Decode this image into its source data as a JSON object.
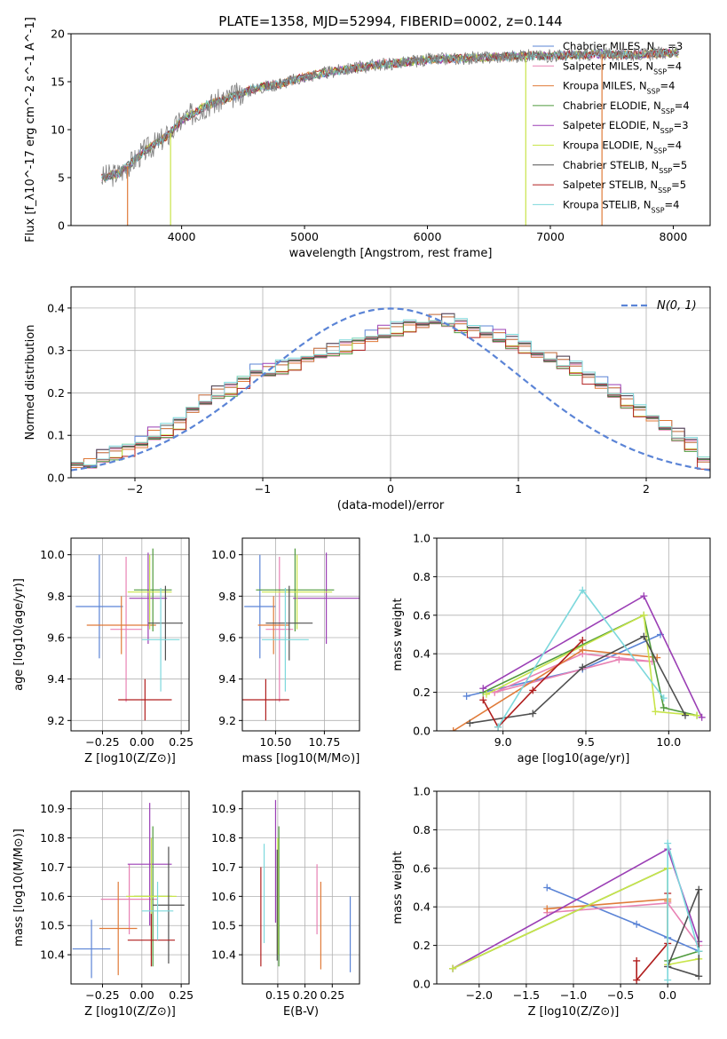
{
  "title": "PLATE=1358, MJD=52994, FIBERID=0002, z=0.144",
  "legend": [
    {
      "label": "Chabrier MILES, N_SSP=3",
      "main": "Chabrier MILES, N",
      "sub": "SSP",
      "tail": "=3",
      "color": "#5b84d6"
    },
    {
      "label": "Salpeter MILES, N_SSP=4",
      "main": "Salpeter MILES, N",
      "sub": "SSP",
      "tail": "=4",
      "color": "#e882b4"
    },
    {
      "label": "Kroupa MILES, N_SSP=4",
      "main": "Kroupa MILES, N",
      "sub": "SSP",
      "tail": "=4",
      "color": "#e07b39"
    },
    {
      "label": "Chabrier ELODIE, N_SSP=4",
      "main": "Chabrier ELODIE, N",
      "sub": "SSP",
      "tail": "=4",
      "color": "#4f9a3c"
    },
    {
      "label": "Salpeter ELODIE, N_SSP=3",
      "main": "Salpeter ELODIE, N",
      "sub": "SSP",
      "tail": "=3",
      "color": "#9b3fb5"
    },
    {
      "label": "Kroupa ELODIE, N_SSP=4",
      "main": "Kroupa ELODIE, N",
      "sub": "SSP",
      "tail": "=4",
      "color": "#c8e44a"
    },
    {
      "label": "Chabrier STELIB, N_SSP=5",
      "main": "Chabrier STELIB, N",
      "sub": "SSP",
      "tail": "=5",
      "color": "#505050"
    },
    {
      "label": "Salpeter STELIB, N_SSP=5",
      "main": "Salpeter STELIB, N",
      "sub": "SSP",
      "tail": "=5",
      "color": "#b01e1e"
    },
    {
      "label": "Kroupa STELIB, N_SSP=4",
      "main": "Kroupa STELIB, N",
      "sub": "SSP",
      "tail": "=4",
      "color": "#7dd8dc"
    }
  ],
  "chart_data": [
    {
      "id": "spectrum",
      "type": "line",
      "xlabel": "wavelength [Angstrom, rest frame]",
      "ylabel": "Flux [f_λ10^-17 erg cm^-2 s^-1 A^-1]",
      "xlim": [
        3100,
        8300
      ],
      "ylim": [
        0,
        20
      ],
      "xticks": [
        4000,
        5000,
        6000,
        7000,
        8000
      ],
      "yticks": [
        0,
        5,
        10,
        15,
        20
      ],
      "grid": false,
      "data_color": "#808080",
      "data_x": [
        3350,
        3500,
        3700,
        3900,
        4000,
        4200,
        4400,
        4600,
        4800,
        5000,
        5200,
        5400,
        5600,
        5800,
        6000,
        6200,
        6400,
        6600,
        6800,
        7000,
        7200,
        7400,
        7600,
        7800,
        8000
      ],
      "data_y": [
        5.0,
        5.5,
        7.8,
        9.5,
        11.0,
        12.5,
        13.4,
        14.3,
        14.8,
        15.5,
        16.0,
        16.4,
        16.8,
        17.0,
        17.3,
        17.4,
        17.5,
        17.6,
        17.7,
        17.7,
        17.8,
        17.9,
        17.8,
        17.9,
        18.0
      ],
      "model_spikes": [
        {
          "x": 3560,
          "color": "#e07b39"
        },
        {
          "x": 3910,
          "color": "#c8e44a"
        },
        {
          "x": 6800,
          "color": "#c8e44a"
        },
        {
          "x": 7420,
          "color": "#e07b39"
        }
      ]
    },
    {
      "id": "residuals",
      "type": "step",
      "xlabel": "(data-model)/error",
      "ylabel": "Normed distribution",
      "xlim": [
        -2.5,
        2.5
      ],
      "ylim": [
        0,
        0.45
      ],
      "xticks": [
        -2,
        -1,
        0,
        1,
        2
      ],
      "yticks": [
        0.0,
        0.1,
        0.2,
        0.3,
        0.4
      ],
      "grid": true,
      "gaussian_label": "N(0, 1)",
      "gaussian_color": "#5b84d6",
      "bin_width": 0.1,
      "x_start": -2.5,
      "y_values": [
        0.03,
        0.03,
        0.05,
        0.06,
        0.07,
        0.08,
        0.1,
        0.11,
        0.13,
        0.16,
        0.18,
        0.2,
        0.21,
        0.23,
        0.25,
        0.25,
        0.26,
        0.27,
        0.28,
        0.29,
        0.3,
        0.31,
        0.32,
        0.33,
        0.34,
        0.35,
        0.36,
        0.36,
        0.37,
        0.37,
        0.36,
        0.35,
        0.34,
        0.33,
        0.32,
        0.31,
        0.29,
        0.28,
        0.27,
        0.26,
        0.24,
        0.22,
        0.2,
        0.18,
        0.16,
        0.14,
        0.12,
        0.1,
        0.08,
        0.04
      ]
    },
    {
      "id": "age-vs-Z",
      "type": "errorbar",
      "xlabel": "Z [log10(Z/Z⊙)]",
      "ylabel": "age [log10(age/yr)]",
      "xlim": [
        -0.45,
        0.3
      ],
      "ylim": [
        9.15,
        10.08
      ],
      "xticks": [
        -0.25,
        0.0,
        0.25
      ],
      "ytick_values": [
        9.2,
        9.4,
        9.6,
        9.8,
        10.0
      ],
      "grid": true,
      "points": [
        {
          "x": -0.27,
          "xerr": 0.15,
          "y": 9.75,
          "yerr": 0.25,
          "color": "#5b84d6"
        },
        {
          "x": -0.1,
          "xerr": 0.1,
          "y": 9.64,
          "yerr": 0.35,
          "color": "#e882b4"
        },
        {
          "x": -0.13,
          "xerr": 0.22,
          "y": 9.66,
          "yerr": 0.14,
          "color": "#e07b39"
        },
        {
          "x": 0.07,
          "xerr": 0.12,
          "y": 9.83,
          "yerr": 0.2,
          "color": "#4f9a3c"
        },
        {
          "x": 0.04,
          "xerr": 0.12,
          "y": 9.79,
          "yerr": 0.22,
          "color": "#9b3fb5"
        },
        {
          "x": 0.05,
          "xerr": 0.14,
          "y": 9.82,
          "yerr": 0.18,
          "color": "#c8e44a"
        },
        {
          "x": 0.15,
          "xerr": 0.11,
          "y": 9.67,
          "yerr": 0.18,
          "color": "#505050"
        },
        {
          "x": 0.02,
          "xerr": 0.17,
          "y": 9.3,
          "yerr": 0.1,
          "color": "#b01e1e"
        },
        {
          "x": 0.12,
          "xerr": 0.12,
          "y": 9.59,
          "yerr": 0.25,
          "color": "#7dd8dc"
        }
      ]
    },
    {
      "id": "age-vs-mass",
      "type": "errorbar",
      "xlabel": "mass [log10(M/M⊙)]",
      "ylabel": "",
      "xlim": [
        10.33,
        10.93
      ],
      "ylim": [
        9.15,
        10.08
      ],
      "xticks": [
        10.5,
        10.75
      ],
      "ytick_values": [
        9.2,
        9.4,
        9.6,
        9.8,
        10.0
      ],
      "grid": true,
      "points": [
        {
          "x": 10.42,
          "xerr": 0.08,
          "y": 9.75,
          "yerr": 0.25,
          "color": "#5b84d6"
        },
        {
          "x": 10.52,
          "xerr": 0.07,
          "y": 9.64,
          "yerr": 0.35,
          "color": "#e882b4"
        },
        {
          "x": 10.49,
          "xerr": 0.08,
          "y": 9.66,
          "yerr": 0.14,
          "color": "#e07b39"
        },
        {
          "x": 10.6,
          "xerr": 0.2,
          "y": 9.83,
          "yerr": 0.2,
          "color": "#4f9a3c"
        },
        {
          "x": 10.76,
          "xerr": 0.17,
          "y": 9.79,
          "yerr": 0.22,
          "color": "#9b3fb5"
        },
        {
          "x": 10.61,
          "xerr": 0.18,
          "y": 9.82,
          "yerr": 0.18,
          "color": "#c8e44a"
        },
        {
          "x": 10.57,
          "xerr": 0.12,
          "y": 9.67,
          "yerr": 0.18,
          "color": "#505050"
        },
        {
          "x": 10.45,
          "xerr": 0.12,
          "y": 9.3,
          "yerr": 0.1,
          "color": "#b01e1e"
        },
        {
          "x": 10.55,
          "xerr": 0.12,
          "y": 9.59,
          "yerr": 0.25,
          "color": "#7dd8dc"
        }
      ]
    },
    {
      "id": "massweight-vs-age",
      "type": "line",
      "xlabel": "age [log10(age/yr)]",
      "ylabel": "mass weight",
      "xlim": [
        8.6,
        10.25
      ],
      "ylim": [
        0,
        1.0
      ],
      "xticks": [
        9.0,
        9.5,
        10.0
      ],
      "yticks": [
        0.0,
        0.2,
        0.4,
        0.6,
        0.8,
        1.0
      ],
      "grid": true,
      "series": [
        {
          "color": "#5b84d6",
          "x": [
            8.78,
            9.48,
            9.95
          ],
          "y": [
            0.18,
            0.32,
            0.5
          ]
        },
        {
          "color": "#e882b4",
          "x": [
            8.95,
            9.48,
            9.9,
            9.7,
            8.95
          ],
          "y": [
            0.2,
            0.4,
            0.36,
            0.37,
            0.2
          ]
        },
        {
          "color": "#e07b39",
          "x": [
            8.7,
            9.48,
            9.93
          ],
          "y": [
            0.0,
            0.42,
            0.38
          ]
        },
        {
          "color": "#4f9a3c",
          "x": [
            8.88,
            9.85,
            9.97,
            10.17
          ],
          "y": [
            0.2,
            0.6,
            0.12,
            0.08
          ]
        },
        {
          "color": "#9b3fb5",
          "x": [
            8.88,
            9.85,
            10.2
          ],
          "y": [
            0.22,
            0.7,
            0.07
          ]
        },
        {
          "color": "#c8e44a",
          "x": [
            8.9,
            9.85,
            9.92,
            10.17
          ],
          "y": [
            0.19,
            0.6,
            0.1,
            0.08
          ]
        },
        {
          "color": "#505050",
          "x": [
            8.8,
            9.18,
            9.48,
            9.85,
            10.1
          ],
          "y": [
            0.04,
            0.09,
            0.33,
            0.49,
            0.08
          ]
        },
        {
          "color": "#b01e1e",
          "x": [
            8.88,
            8.97,
            9.18,
            9.48
          ],
          "y": [
            0.16,
            0.02,
            0.21,
            0.47
          ]
        },
        {
          "color": "#7dd8dc",
          "x": [
            8.97,
            9.48,
            9.97
          ],
          "y": [
            0.02,
            0.73,
            0.17
          ]
        }
      ]
    },
    {
      "id": "mass-vs-Z",
      "type": "errorbar",
      "xlabel": "Z [log10(Z/Z⊙)]",
      "ylabel": "mass [log10(M/M⊙)]",
      "xlim": [
        -0.45,
        0.3
      ],
      "ylim": [
        10.3,
        10.96
      ],
      "xticks": [
        -0.25,
        0.0,
        0.25
      ],
      "ytick_values": [
        10.4,
        10.5,
        10.6,
        10.7,
        10.8,
        10.9
      ],
      "grid": true,
      "points": [
        {
          "x": -0.32,
          "xerr": 0.12,
          "y": 10.42,
          "yerr": 0.1,
          "color": "#5b84d6"
        },
        {
          "x": -0.08,
          "xerr": 0.18,
          "y": 10.59,
          "yerr": 0.12,
          "color": "#e882b4"
        },
        {
          "x": -0.15,
          "xerr": 0.12,
          "y": 10.49,
          "yerr": 0.16,
          "color": "#e07b39"
        },
        {
          "x": 0.07,
          "xerr": 0.12,
          "y": 10.6,
          "yerr": 0.24,
          "color": "#4f9a3c"
        },
        {
          "x": 0.05,
          "xerr": 0.14,
          "y": 10.71,
          "yerr": 0.21,
          "color": "#9b3fb5"
        },
        {
          "x": 0.06,
          "xerr": 0.16,
          "y": 10.6,
          "yerr": 0.2,
          "color": "#c8e44a"
        },
        {
          "x": 0.17,
          "xerr": 0.1,
          "y": 10.57,
          "yerr": 0.2,
          "color": "#505050"
        },
        {
          "x": 0.06,
          "xerr": 0.15,
          "y": 10.45,
          "yerr": 0.09,
          "color": "#b01e1e"
        },
        {
          "x": 0.1,
          "xerr": 0.1,
          "y": 10.55,
          "yerr": 0.1,
          "color": "#7dd8dc"
        }
      ]
    },
    {
      "id": "mass-vs-EBV",
      "type": "errorbar",
      "xlabel": "E(B-V)",
      "ylabel": "",
      "xlim": [
        0.085,
        0.3
      ],
      "ylim": [
        10.3,
        10.96
      ],
      "xticks": [
        0.15,
        0.2,
        0.25
      ],
      "ytick_values": [
        10.4,
        10.5,
        10.6,
        10.7,
        10.8,
        10.9
      ],
      "grid": true,
      "points": [
        {
          "x": 0.283,
          "xerr": 0,
          "y": 10.47,
          "yerr": 0.13,
          "color": "#5b84d6"
        },
        {
          "x": 0.222,
          "xerr": 0,
          "y": 10.59,
          "yerr": 0.12,
          "color": "#e882b4"
        },
        {
          "x": 0.229,
          "xerr": 0,
          "y": 10.5,
          "yerr": 0.15,
          "color": "#e07b39"
        },
        {
          "x": 0.152,
          "xerr": 0,
          "y": 10.6,
          "yerr": 0.24,
          "color": "#4f9a3c"
        },
        {
          "x": 0.146,
          "xerr": 0,
          "y": 10.72,
          "yerr": 0.21,
          "color": "#9b3fb5"
        },
        {
          "x": 0.15,
          "xerr": 0,
          "y": 10.6,
          "yerr": 0.2,
          "color": "#c8e44a"
        },
        {
          "x": 0.149,
          "xerr": 0,
          "y": 10.57,
          "yerr": 0.19,
          "color": "#505050"
        },
        {
          "x": 0.119,
          "xerr": 0,
          "y": 10.53,
          "yerr": 0.17,
          "color": "#b01e1e"
        },
        {
          "x": 0.125,
          "xerr": 0,
          "y": 10.61,
          "yerr": 0.17,
          "color": "#7dd8dc"
        }
      ]
    },
    {
      "id": "massweight-vs-Z",
      "type": "line",
      "xlabel": "Z [log10(Z/Z⊙)]",
      "ylabel": "mass weight",
      "xlim": [
        -2.45,
        0.45
      ],
      "ylim": [
        0,
        1.0
      ],
      "xticks": [
        -2.0,
        -1.5,
        -1.0,
        -0.5,
        0.0
      ],
      "yticks": [
        0.0,
        0.2,
        0.4,
        0.6,
        0.8,
        1.0
      ],
      "grid": true,
      "series": [
        {
          "color": "#5b84d6",
          "x": [
            -1.28,
            -0.33,
            0.0,
            0.33
          ],
          "y": [
            0.5,
            0.31,
            0.24,
            0.17
          ]
        },
        {
          "color": "#e882b4",
          "x": [
            -1.28,
            0.0,
            0.33,
            0.0
          ],
          "y": [
            0.37,
            0.42,
            0.2,
            0.42
          ]
        },
        {
          "color": "#e07b39",
          "x": [
            -1.28,
            0.0,
            0.0
          ],
          "y": [
            0.39,
            0.44,
            0.43
          ]
        },
        {
          "color": "#4f9a3c",
          "x": [
            -2.28,
            0.0,
            0.0,
            0.33
          ],
          "y": [
            0.08,
            0.6,
            0.12,
            0.17
          ]
        },
        {
          "color": "#9b3fb5",
          "x": [
            -2.28,
            0.0,
            0.33
          ],
          "y": [
            0.08,
            0.7,
            0.22
          ]
        },
        {
          "color": "#c8e44a",
          "x": [
            -2.28,
            0.0,
            0.0,
            0.33
          ],
          "y": [
            0.08,
            0.6,
            0.1,
            0.13
          ]
        },
        {
          "color": "#505050",
          "x": [
            0.0,
            0.33,
            0.33,
            0.0
          ],
          "y": [
            0.09,
            0.49,
            0.04,
            0.09
          ]
        },
        {
          "color": "#b01e1e",
          "x": [
            -0.33,
            -0.33,
            0.0,
            0.0
          ],
          "y": [
            0.12,
            0.02,
            0.21,
            0.47
          ]
        },
        {
          "color": "#7dd8dc",
          "x": [
            0.0,
            0.0,
            0.33
          ],
          "y": [
            0.02,
            0.73,
            0.17
          ]
        }
      ]
    }
  ]
}
